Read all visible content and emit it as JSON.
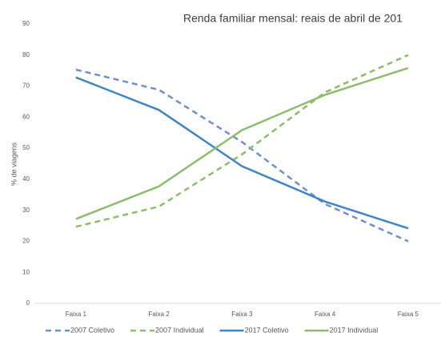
{
  "chart_data": {
    "type": "line",
    "title": "Renda familiar mensal: reais de abril de 201",
    "y_label": "% de viagens",
    "categories": [
      "Faixa 1",
      "Faixa 2",
      "Faixa 3",
      "Faixa 4",
      "Faixa 5"
    ],
    "series": [
      {
        "name": "2007 Coletivo",
        "color": "#6f8fcf",
        "line_style": "dashed",
        "values": [
          75.3,
          68.8,
          52,
          32,
          20
        ]
      },
      {
        "name": "2007 Individual",
        "color": "#8dbd6c",
        "line_style": "dashed",
        "values": [
          24.7,
          31.2,
          48,
          68,
          80
        ]
      },
      {
        "name": "2017 Coletivo",
        "color": "#3f86c6",
        "line_style": "solid",
        "values": [
          72.8,
          62.3,
          44.2,
          32.8,
          24.2
        ]
      },
      {
        "name": "2017 Individual",
        "color": "#8dbd6c",
        "line_style": "solid",
        "values": [
          27.2,
          37.7,
          55.8,
          67.2,
          75.8
        ]
      }
    ],
    "ylim": [
      0,
      90
    ],
    "yticks": [
      0,
      10,
      20,
      30,
      40,
      50,
      60,
      70,
      80,
      90
    ],
    "grid": false,
    "legend": "bottom"
  }
}
